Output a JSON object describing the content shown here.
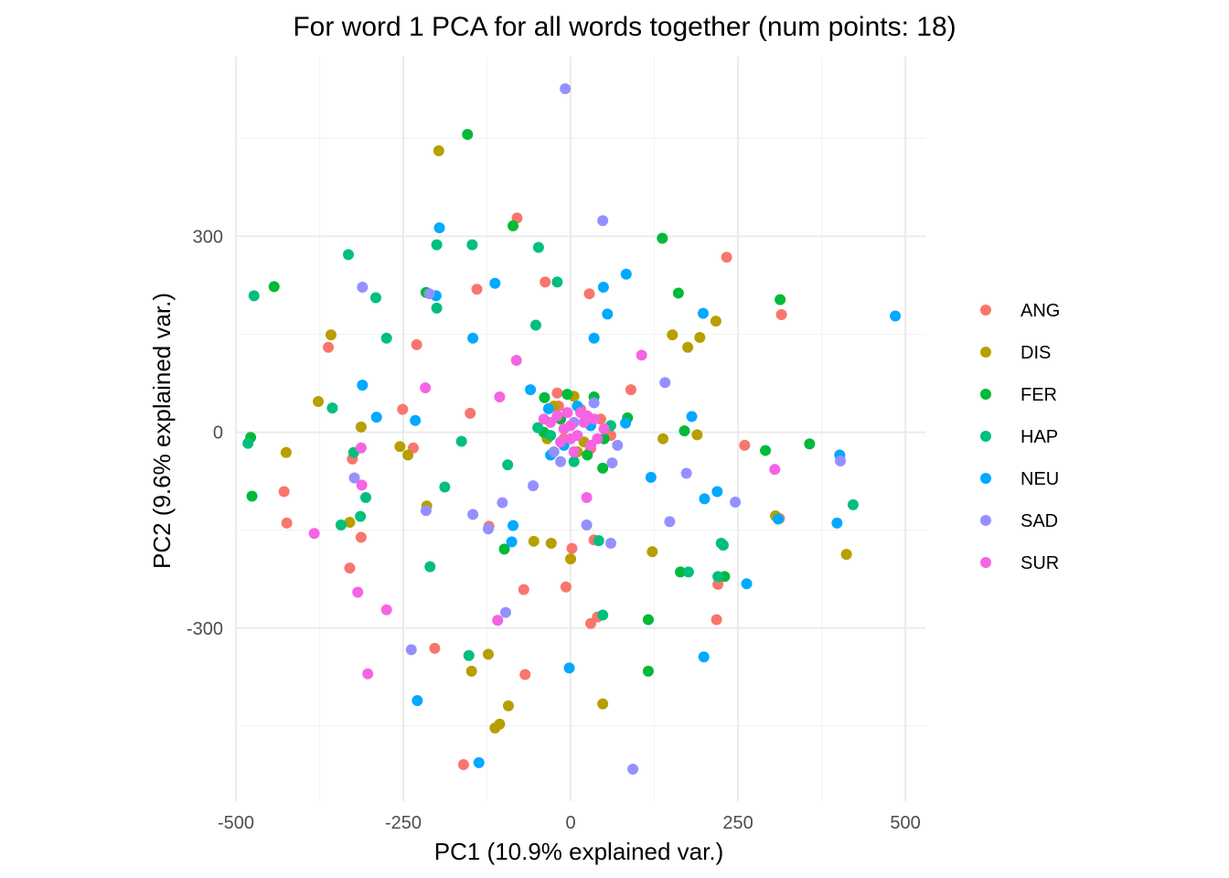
{
  "chart_data": {
    "type": "scatter",
    "title": "For word 1 PCA for all words together (num points: 18)",
    "xlabel": "PC1 (10.9% explained var.)",
    "ylabel": "PC2 (9.6% explained var.)",
    "xlim": [
      -500,
      530
    ],
    "ylim": [
      -565,
      575
    ],
    "x_ticks": [
      -500,
      -250,
      0,
      250,
      500
    ],
    "x_tick_labels": [
      "-500",
      "-250",
      "0",
      "250",
      "500"
    ],
    "y_ticks": [
      -300,
      0,
      300
    ],
    "y_tick_labels": [
      "-300",
      "0",
      "300"
    ],
    "grid": true,
    "legend_position": "right",
    "series": [
      {
        "name": "ANG",
        "color": "#F8766D",
        "points": [
          [
            -80,
            328
          ],
          [
            233,
            268
          ],
          [
            -38,
            230
          ],
          [
            28,
            212
          ],
          [
            -140,
            219
          ],
          [
            -230,
            134
          ],
          [
            315,
            180
          ],
          [
            -362,
            130
          ],
          [
            -251,
            35
          ],
          [
            -150,
            29
          ],
          [
            -20,
            60
          ],
          [
            90,
            65
          ],
          [
            -235,
            -24
          ],
          [
            260,
            -20
          ],
          [
            -428,
            -91
          ],
          [
            -424,
            -139
          ],
          [
            -313,
            -161
          ],
          [
            -326,
            -41
          ],
          [
            -330,
            -208
          ],
          [
            312,
            -132
          ],
          [
            220,
            -233
          ],
          [
            -122,
            -144
          ],
          [
            35,
            -165
          ],
          [
            2,
            -178
          ],
          [
            -7,
            -237
          ],
          [
            -70,
            -241
          ],
          [
            218,
            -287
          ],
          [
            40,
            -283
          ],
          [
            30,
            -293
          ],
          [
            -203,
            -331
          ],
          [
            -68,
            -371
          ],
          [
            -160,
            -509
          ],
          [
            60,
            -5
          ],
          [
            -10,
            -10
          ],
          [
            15,
            35
          ],
          [
            -18,
            40
          ],
          [
            30,
            -25
          ],
          [
            45,
            20
          ]
        ]
      },
      {
        "name": "DIS",
        "color": "#B79F00",
        "points": [
          [
            -197,
            431
          ],
          [
            -358,
            149
          ],
          [
            152,
            149
          ],
          [
            217,
            170
          ],
          [
            193,
            145
          ],
          [
            175,
            130
          ],
          [
            -377,
            47
          ],
          [
            -313,
            8
          ],
          [
            138,
            -10
          ],
          [
            189,
            -4
          ],
          [
            -425,
            -31
          ],
          [
            -255,
            -22
          ],
          [
            -243,
            -35
          ],
          [
            -215,
            -113
          ],
          [
            -330,
            -138
          ],
          [
            -55,
            -167
          ],
          [
            -29,
            -170
          ],
          [
            122,
            -183
          ],
          [
            0,
            -194
          ],
          [
            306,
            -128
          ],
          [
            412,
            -187
          ],
          [
            -123,
            -340
          ],
          [
            -148,
            -366
          ],
          [
            48,
            -416
          ],
          [
            -93,
            -419
          ],
          [
            -106,
            -447
          ],
          [
            -113,
            -453
          ],
          [
            10,
            -30
          ],
          [
            -25,
            40
          ],
          [
            5,
            55
          ],
          [
            20,
            -15
          ],
          [
            -35,
            -10
          ]
        ]
      },
      {
        "name": "FER",
        "color": "#00BA38",
        "points": [
          [
            -154,
            456
          ],
          [
            -86,
            316
          ],
          [
            137,
            297
          ],
          [
            -216,
            214
          ],
          [
            161,
            213
          ],
          [
            313,
            203
          ],
          [
            -443,
            223
          ],
          [
            -39,
            53
          ],
          [
            35,
            54
          ],
          [
            -5,
            58
          ],
          [
            85,
            22
          ],
          [
            170,
            2
          ],
          [
            357,
            -18
          ],
          [
            291,
            -28
          ],
          [
            -478,
            -8
          ],
          [
            -476,
            -98
          ],
          [
            -99,
            -179
          ],
          [
            116,
            -287
          ],
          [
            230,
            -221
          ],
          [
            164,
            -214
          ],
          [
            116,
            -366
          ],
          [
            48,
            -55
          ],
          [
            -15,
            20
          ],
          [
            25,
            -35
          ],
          [
            50,
            -10
          ],
          [
            -40,
            0
          ]
        ]
      },
      {
        "name": "HAP",
        "color": "#00BF7D",
        "points": [
          [
            -200,
            287
          ],
          [
            -147,
            287
          ],
          [
            -48,
            283
          ],
          [
            -332,
            272
          ],
          [
            -20,
            230
          ],
          [
            -473,
            209
          ],
          [
            -291,
            206
          ],
          [
            -200,
            190
          ],
          [
            -52,
            164
          ],
          [
            -275,
            144
          ],
          [
            -49,
            7
          ],
          [
            -356,
            37
          ],
          [
            -163,
            -14
          ],
          [
            -324,
            -31
          ],
          [
            -94,
            -50
          ],
          [
            -306,
            -100
          ],
          [
            -188,
            -84
          ],
          [
            -314,
            -129
          ],
          [
            -343,
            -142
          ],
          [
            -210,
            -206
          ],
          [
            422,
            -111
          ],
          [
            225,
            -170
          ],
          [
            228,
            -173
          ],
          [
            176,
            -214
          ],
          [
            220,
            -221
          ],
          [
            42,
            -166
          ],
          [
            48,
            -280
          ],
          [
            -152,
            -342
          ],
          [
            -482,
            -17
          ],
          [
            5,
            -45
          ],
          [
            -30,
            -5
          ],
          [
            60,
            10
          ]
        ]
      },
      {
        "name": "NEU",
        "color": "#00A9FF",
        "points": [
          [
            -196,
            313
          ],
          [
            83,
            242
          ],
          [
            -201,
            209
          ],
          [
            -113,
            228
          ],
          [
            49,
            222
          ],
          [
            485,
            178
          ],
          [
            198,
            182
          ],
          [
            55,
            181
          ],
          [
            35,
            144
          ],
          [
            -146,
            144
          ],
          [
            -311,
            72
          ],
          [
            -60,
            65
          ],
          [
            181,
            24
          ],
          [
            -33,
            36
          ],
          [
            -290,
            23
          ],
          [
            -232,
            18
          ],
          [
            82,
            14
          ],
          [
            402,
            -35
          ],
          [
            -30,
            -35
          ],
          [
            120,
            -69
          ],
          [
            219,
            -91
          ],
          [
            200,
            -102
          ],
          [
            310,
            -133
          ],
          [
            398,
            -139
          ],
          [
            -86,
            -143
          ],
          [
            -88,
            -168
          ],
          [
            263,
            -232
          ],
          [
            -2,
            -361
          ],
          [
            -229,
            -411
          ],
          [
            199,
            -344
          ],
          [
            -137,
            -506
          ],
          [
            10,
            40
          ],
          [
            -10,
            -20
          ],
          [
            30,
            10
          ]
        ]
      },
      {
        "name": "SAD",
        "color": "#9590FF",
        "points": [
          [
            -8,
            526
          ],
          [
            48,
            324
          ],
          [
            -311,
            222
          ],
          [
            -211,
            212
          ],
          [
            141,
            76
          ],
          [
            -102,
            -108
          ],
          [
            -56,
            -82
          ],
          [
            -323,
            -70
          ],
          [
            -146,
            -126
          ],
          [
            -123,
            -148
          ],
          [
            246,
            -107
          ],
          [
            173,
            -63
          ],
          [
            -216,
            -120
          ],
          [
            148,
            -137
          ],
          [
            24,
            -142
          ],
          [
            62,
            -47
          ],
          [
            403,
            -44
          ],
          [
            60,
            -170
          ],
          [
            -97,
            -276
          ],
          [
            -238,
            -333
          ],
          [
            93,
            -516
          ],
          [
            -15,
            -45
          ],
          [
            35,
            45
          ],
          [
            -25,
            -30
          ],
          [
            70,
            -20
          ],
          [
            5,
            15
          ]
        ]
      },
      {
        "name": "SUR",
        "color": "#F564E3",
        "points": [
          [
            106,
            118
          ],
          [
            -81,
            110
          ],
          [
            -217,
            68
          ],
          [
            -106,
            54
          ],
          [
            -313,
            -24
          ],
          [
            -312,
            -81
          ],
          [
            305,
            -57
          ],
          [
            24,
            -100
          ],
          [
            -383,
            -155
          ],
          [
            -318,
            -245
          ],
          [
            -275,
            -272
          ],
          [
            -109,
            -288
          ],
          [
            -303,
            -370
          ],
          [
            -30,
            15
          ],
          [
            -40,
            20
          ],
          [
            -20,
            25
          ],
          [
            -10,
            5
          ],
          [
            0,
            10
          ],
          [
            10,
            -5
          ],
          [
            20,
            15
          ],
          [
            25,
            25
          ],
          [
            35,
            20
          ],
          [
            40,
            -10
          ],
          [
            30,
            -20
          ],
          [
            5,
            -30
          ],
          [
            -5,
            30
          ],
          [
            15,
            30
          ],
          [
            -15,
            -15
          ],
          [
            50,
            5
          ],
          [
            0,
            -10
          ]
        ]
      }
    ]
  }
}
